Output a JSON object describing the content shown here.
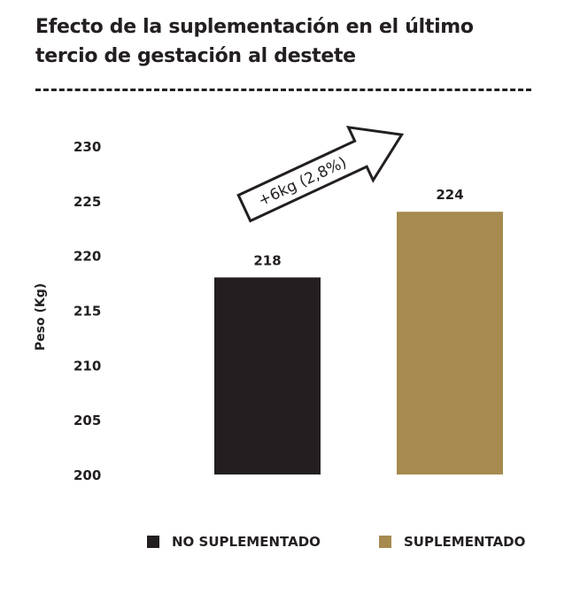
{
  "title_line1": "Efecto de la suplementación en el último",
  "title_line2": "tercio de gestación al destete",
  "chart_data": {
    "type": "bar",
    "title": "Efecto de la suplementación en el último tercio de gestación al destete",
    "ylabel": "Peso (Kg)",
    "xlabel": "",
    "ylim": [
      200,
      230
    ],
    "yticks": [
      200,
      205,
      210,
      215,
      220,
      225,
      230
    ],
    "categories": [
      "NO SUPLEMENTADO",
      "SUPLEMENTADO"
    ],
    "values": [
      218,
      224
    ],
    "data_labels": [
      "218",
      "224"
    ],
    "colors": [
      "#231f20",
      "#a68a4f"
    ],
    "annotation": "+6kg (2,8%)",
    "grid": false,
    "legend_position": "bottom"
  },
  "legend": [
    {
      "label": "NO SUPLEMENTADO",
      "color": "#231f20"
    },
    {
      "label": "SUPLEMENTADO",
      "color": "#a68a4f"
    }
  ]
}
